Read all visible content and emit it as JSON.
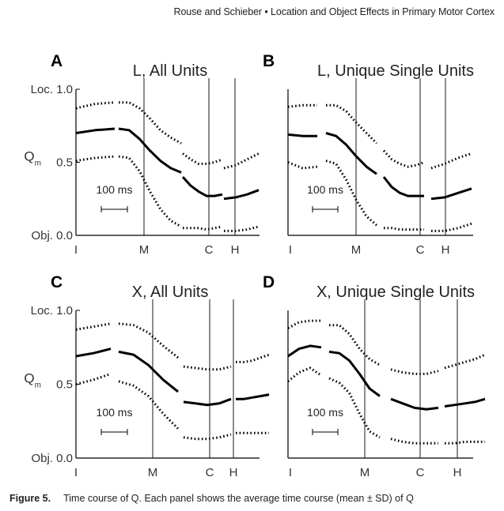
{
  "header": "Rouse and Schieber • Location and Object Effects in Primary Motor Cortex",
  "caption": {
    "label": "Figure 5.",
    "text": "Time course of Q. Each panel shows the average time course (mean ± SD) of Q"
  },
  "chart_data": [
    {
      "type": "line",
      "panel": "A",
      "title": "L, All Units",
      "ylabel": "Q",
      "ylabel_sub": "m",
      "ylim": [
        0.0,
        1.0
      ],
      "yticks": [
        {
          "v": 1.0,
          "label": "Loc. 1.0"
        },
        {
          "v": 0.5,
          "label": "0.5"
        },
        {
          "v": 0.0,
          "label": "Obj. 0.0"
        }
      ],
      "events": [
        {
          "label": "I",
          "line": false
        },
        {
          "label": "M",
          "line": true
        },
        {
          "label": "C",
          "line": true
        },
        {
          "label": "H",
          "line": true
        }
      ],
      "scale_bar": "100 ms",
      "segments": [
        {
          "mean": [
            0.7,
            0.72,
            0.73
          ],
          "upper": [
            0.87,
            0.9,
            0.91
          ],
          "lower": [
            0.51,
            0.53,
            0.54
          ]
        },
        {
          "mean": [
            0.73,
            0.72,
            0.66,
            0.58,
            0.51,
            0.46,
            0.43
          ],
          "upper": [
            0.91,
            0.91,
            0.87,
            0.8,
            0.72,
            0.67,
            0.63
          ],
          "lower": [
            0.54,
            0.53,
            0.44,
            0.3,
            0.18,
            0.1,
            0.06
          ]
        },
        {
          "mean": [
            0.4,
            0.34,
            0.3,
            0.27,
            0.27,
            0.28
          ],
          "upper": [
            0.56,
            0.52,
            0.49,
            0.49,
            0.5,
            0.52
          ],
          "lower": [
            0.05,
            0.05,
            0.05,
            0.04,
            0.05,
            0.06
          ]
        },
        {
          "mean": [
            0.25,
            0.26,
            0.28,
            0.31
          ],
          "upper": [
            0.46,
            0.48,
            0.52,
            0.56
          ],
          "lower": [
            0.03,
            0.03,
            0.04,
            0.06
          ]
        }
      ]
    },
    {
      "type": "line",
      "panel": "B",
      "title": "L, Unique Single Units",
      "ylabel": "",
      "ylabel_sub": "",
      "ylim": [
        0.0,
        1.0
      ],
      "yticks": [],
      "events": [
        {
          "label": "I",
          "line": false
        },
        {
          "label": "M",
          "line": true
        },
        {
          "label": "C",
          "line": true
        },
        {
          "label": "H",
          "line": true
        }
      ],
      "scale_bar": "100 ms",
      "segments": [
        {
          "mean": [
            0.69,
            0.68,
            0.68
          ],
          "upper": [
            0.88,
            0.89,
            0.89
          ],
          "lower": [
            0.5,
            0.46,
            0.47
          ]
        },
        {
          "mean": [
            0.7,
            0.68,
            0.62,
            0.54,
            0.47,
            0.42
          ],
          "upper": [
            0.89,
            0.89,
            0.85,
            0.77,
            0.7,
            0.63
          ],
          "lower": [
            0.51,
            0.49,
            0.38,
            0.24,
            0.13,
            0.07
          ]
        },
        {
          "mean": [
            0.4,
            0.33,
            0.29,
            0.27,
            0.27,
            0.27
          ],
          "upper": [
            0.58,
            0.52,
            0.49,
            0.47,
            0.48,
            0.5
          ],
          "lower": [
            0.05,
            0.05,
            0.04,
            0.04,
            0.04,
            0.04
          ]
        },
        {
          "mean": [
            0.25,
            0.26,
            0.29,
            0.32
          ],
          "upper": [
            0.46,
            0.49,
            0.53,
            0.56
          ],
          "lower": [
            0.03,
            0.03,
            0.05,
            0.08
          ]
        }
      ]
    },
    {
      "type": "line",
      "panel": "C",
      "title": "X, All Units",
      "ylabel": "Q",
      "ylabel_sub": "m",
      "ylim": [
        0.0,
        1.0
      ],
      "yticks": [
        {
          "v": 1.0,
          "label": "Loc. 1.0"
        },
        {
          "v": 0.5,
          "label": "0.5"
        },
        {
          "v": 0.0,
          "label": "Obj. 0.0"
        }
      ],
      "events": [
        {
          "label": "I",
          "line": false
        },
        {
          "label": "M",
          "line": true
        },
        {
          "label": "C",
          "line": true
        },
        {
          "label": "H",
          "line": true
        }
      ],
      "scale_bar": "100 ms",
      "segments": [
        {
          "mean": [
            0.69,
            0.71,
            0.74
          ],
          "upper": [
            0.87,
            0.89,
            0.91
          ],
          "lower": [
            0.5,
            0.53,
            0.57
          ]
        },
        {
          "mean": [
            0.72,
            0.7,
            0.63,
            0.53,
            0.45
          ],
          "upper": [
            0.91,
            0.9,
            0.85,
            0.76,
            0.68
          ],
          "lower": [
            0.52,
            0.49,
            0.42,
            0.3,
            0.2
          ]
        },
        {
          "mean": [
            0.38,
            0.37,
            0.36,
            0.37,
            0.4
          ],
          "upper": [
            0.62,
            0.61,
            0.6,
            0.6,
            0.62
          ],
          "lower": [
            0.14,
            0.13,
            0.13,
            0.14,
            0.16
          ]
        },
        {
          "mean": [
            0.4,
            0.4,
            0.41,
            0.42,
            0.43
          ],
          "upper": [
            0.65,
            0.65,
            0.66,
            0.68,
            0.7
          ],
          "lower": [
            0.17,
            0.17,
            0.17,
            0.17,
            0.17
          ]
        }
      ]
    },
    {
      "type": "line",
      "panel": "D",
      "title": "X, Unique Single Units",
      "ylabel": "",
      "ylabel_sub": "",
      "ylim": [
        0.0,
        1.0
      ],
      "yticks": [],
      "events": [
        {
          "label": "I",
          "line": false
        },
        {
          "label": "M",
          "line": true
        },
        {
          "label": "C",
          "line": true
        },
        {
          "label": "H",
          "line": true
        }
      ],
      "scale_bar": "100 ms",
      "segments": [
        {
          "mean": [
            0.69,
            0.74,
            0.76,
            0.75
          ],
          "upper": [
            0.88,
            0.92,
            0.93,
            0.93
          ],
          "lower": [
            0.52,
            0.58,
            0.61,
            0.56
          ]
        },
        {
          "mean": [
            0.72,
            0.71,
            0.66,
            0.57,
            0.47,
            0.42
          ],
          "upper": [
            0.9,
            0.9,
            0.84,
            0.74,
            0.67,
            0.63
          ],
          "lower": [
            0.54,
            0.51,
            0.44,
            0.3,
            0.18,
            0.14
          ]
        },
        {
          "mean": [
            0.4,
            0.37,
            0.34,
            0.33,
            0.34
          ],
          "upper": [
            0.6,
            0.58,
            0.57,
            0.57,
            0.59
          ],
          "lower": [
            0.13,
            0.11,
            0.1,
            0.1,
            0.1
          ]
        },
        {
          "mean": [
            0.35,
            0.36,
            0.37,
            0.38,
            0.4
          ],
          "upper": [
            0.61,
            0.63,
            0.65,
            0.67,
            0.7
          ],
          "lower": [
            0.1,
            0.1,
            0.11,
            0.11,
            0.11
          ]
        }
      ]
    }
  ]
}
